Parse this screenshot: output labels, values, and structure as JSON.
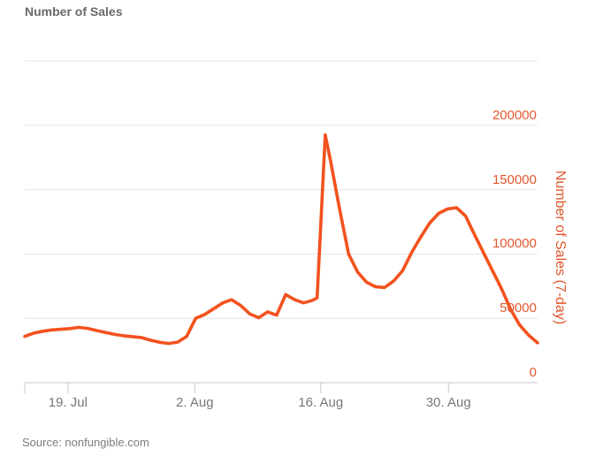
{
  "header": {
    "title": "Number of Sales"
  },
  "footer": {
    "source": "Source: nonfungible.com"
  },
  "chart_data": {
    "type": "line",
    "title": "Number of Sales",
    "y_axis_title": "Number of Sales (7-day)",
    "legend": "none",
    "grid": "horizontal",
    "ylim": [
      0,
      250000
    ],
    "y_grid_values": [
      0,
      50000,
      100000,
      150000,
      200000,
      250000
    ],
    "y_ticks": [
      {
        "value": 0,
        "label": "0"
      },
      {
        "value": 50000,
        "label": "50000"
      },
      {
        "value": 100000,
        "label": "100000"
      },
      {
        "value": 150000,
        "label": "150000"
      },
      {
        "value": 200000,
        "label": "200000"
      }
    ],
    "xlim_days": [
      0,
      57
    ],
    "x_ticks": [
      {
        "day": 4.8,
        "label": "19. Jul"
      },
      {
        "day": 18.9,
        "label": "2. Aug"
      },
      {
        "day": 32.9,
        "label": "16. Aug"
      },
      {
        "day": 47.1,
        "label": "30. Aug"
      }
    ],
    "series": [
      {
        "name": "Number of Sales (7-day)",
        "color": "#f3521e",
        "points": [
          [
            0,
            36000
          ],
          [
            1,
            38500
          ],
          [
            2,
            40000
          ],
          [
            3,
            41000
          ],
          [
            4,
            41500
          ],
          [
            5,
            42000
          ],
          [
            6,
            43000
          ],
          [
            7,
            42200
          ],
          [
            8,
            40500
          ],
          [
            9,
            39000
          ],
          [
            10,
            37500
          ],
          [
            11,
            36500
          ],
          [
            12,
            35800
          ],
          [
            13,
            35000
          ],
          [
            14,
            33000
          ],
          [
            15,
            31400
          ],
          [
            16,
            30500
          ],
          [
            17,
            31500
          ],
          [
            18,
            36000
          ],
          [
            18.5,
            43000
          ],
          [
            19,
            50000
          ],
          [
            20,
            53000
          ],
          [
            21,
            57500
          ],
          [
            22,
            62000
          ],
          [
            23,
            64500
          ],
          [
            24,
            60000
          ],
          [
            25,
            53500
          ],
          [
            26,
            50500
          ],
          [
            27,
            55000
          ],
          [
            28,
            52500
          ],
          [
            29,
            68500
          ],
          [
            30,
            64500
          ],
          [
            31,
            62000
          ],
          [
            32,
            64000
          ],
          [
            32.5,
            66000
          ],
          [
            33.4,
            192500
          ],
          [
            34,
            172000
          ],
          [
            35,
            135000
          ],
          [
            36,
            100000
          ],
          [
            37,
            86000
          ],
          [
            38,
            78000
          ],
          [
            39,
            74500
          ],
          [
            40,
            74000
          ],
          [
            41,
            79000
          ],
          [
            42,
            87000
          ],
          [
            43,
            101000
          ],
          [
            44,
            113000
          ],
          [
            45,
            124000
          ],
          [
            46,
            131500
          ],
          [
            47,
            135000
          ],
          [
            48,
            136000
          ],
          [
            49,
            129500
          ],
          [
            50,
            115000
          ],
          [
            51,
            101000
          ],
          [
            52,
            87000
          ],
          [
            53,
            73000
          ],
          [
            54,
            57000
          ],
          [
            55,
            45000
          ],
          [
            56,
            37000
          ],
          [
            57,
            31000
          ]
        ]
      }
    ],
    "colors": {
      "line": "#f3521e",
      "axis_text_orange": "#e2572d",
      "title_gray": "#696a6d",
      "x_label_gray": "#76777a",
      "source_gray": "#7c7d80",
      "gridline": "#e6e6e6",
      "axis_line": "#c9c9c9",
      "background": "#ffffff"
    }
  }
}
